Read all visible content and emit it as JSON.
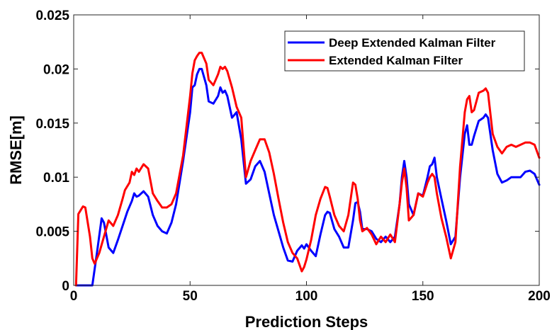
{
  "chart_data": {
    "type": "line",
    "title": "",
    "xlabel": "Prediction Steps",
    "ylabel": "RMSE[m]",
    "xlim": [
      0,
      200
    ],
    "ylim": [
      0,
      0.025
    ],
    "xticks": [
      0,
      50,
      100,
      150,
      200
    ],
    "xtick_labels": [
      "0",
      "50",
      "100",
      "150",
      "200"
    ],
    "yticks": [
      0,
      0.005,
      0.01,
      0.015,
      0.02,
      0.025
    ],
    "ytick_labels": [
      "0",
      "0.005",
      "0.01",
      "0.015",
      "0.02",
      "0.025"
    ],
    "grid": false,
    "legend_position": "top-right",
    "series": [
      {
        "name": "Deep Extended Kalman Filter",
        "color": "#0000ff",
        "x": [
          1,
          4,
          8,
          10,
          12,
          13,
          15,
          17,
          19,
          21,
          23,
          25,
          26,
          27,
          28,
          30,
          32,
          34,
          36,
          38,
          40,
          42,
          44,
          47,
          50,
          51,
          52,
          53,
          54,
          55,
          57,
          58,
          60,
          62,
          63,
          64,
          65,
          66,
          68,
          70,
          72,
          74,
          76,
          78,
          80,
          82,
          84,
          86,
          88,
          90,
          92,
          94,
          96,
          98,
          99,
          100,
          102,
          104,
          106,
          108,
          109,
          110,
          112,
          114,
          116,
          118,
          120,
          121,
          122,
          123,
          124,
          126,
          128,
          130,
          132,
          134,
          136,
          138,
          140,
          141,
          142,
          143,
          144,
          146,
          148,
          150,
          152,
          153,
          154,
          155,
          156,
          158,
          160,
          162,
          164,
          166,
          168,
          169,
          170,
          171,
          172,
          174,
          176,
          177,
          178,
          180,
          182,
          184,
          186,
          188,
          190,
          192,
          194,
          196,
          198,
          200
        ],
        "values": [
          0,
          0,
          0,
          0.003,
          0.0062,
          0.0058,
          0.0035,
          0.003,
          0.0042,
          0.0055,
          0.0068,
          0.0078,
          0.0085,
          0.0082,
          0.0083,
          0.0087,
          0.0082,
          0.0065,
          0.0055,
          0.005,
          0.0048,
          0.0058,
          0.0075,
          0.0115,
          0.016,
          0.0183,
          0.0185,
          0.0195,
          0.02,
          0.02,
          0.0185,
          0.017,
          0.0168,
          0.0175,
          0.0183,
          0.0178,
          0.018,
          0.0175,
          0.0155,
          0.016,
          0.0135,
          0.0094,
          0.0098,
          0.011,
          0.0115,
          0.0105,
          0.0085,
          0.0065,
          0.005,
          0.0035,
          0.0023,
          0.0022,
          0.0032,
          0.0037,
          0.0034,
          0.0038,
          0.0032,
          0.0027,
          0.0047,
          0.0065,
          0.0068,
          0.0067,
          0.0052,
          0.0045,
          0.0035,
          0.0035,
          0.006,
          0.0076,
          0.0077,
          0.0068,
          0.0052,
          0.0052,
          0.005,
          0.0043,
          0.004,
          0.0045,
          0.004,
          0.0045,
          0.0075,
          0.01,
          0.0115,
          0.01,
          0.0075,
          0.0065,
          0.0085,
          0.0083,
          0.01,
          0.011,
          0.0112,
          0.0118,
          0.01,
          0.008,
          0.006,
          0.0038,
          0.0045,
          0.01,
          0.014,
          0.0148,
          0.013,
          0.013,
          0.0138,
          0.0152,
          0.0155,
          0.0158,
          0.0155,
          0.0125,
          0.0103,
          0.0095,
          0.0097,
          0.01,
          0.01,
          0.01,
          0.0105,
          0.0106,
          0.0103,
          0.0093
        ]
      },
      {
        "name": "Extended Kalman Filter",
        "color": "#ff0000",
        "x": [
          1,
          2,
          4,
          5,
          7,
          8,
          9,
          11,
          13,
          15,
          17,
          19,
          21,
          22,
          24,
          25,
          26,
          27,
          28,
          30,
          32,
          34,
          36,
          38,
          40,
          42,
          44,
          47,
          50,
          51,
          52,
          53,
          54,
          55,
          57,
          58,
          60,
          62,
          63,
          64,
          65,
          66,
          68,
          70,
          72,
          74,
          76,
          78,
          80,
          82,
          84,
          86,
          88,
          90,
          92,
          94,
          96,
          98,
          99,
          100,
          102,
          104,
          106,
          108,
          109,
          110,
          112,
          114,
          116,
          118,
          120,
          121,
          122,
          123,
          124,
          126,
          128,
          130,
          132,
          134,
          136,
          138,
          140,
          141,
          142,
          143,
          144,
          146,
          148,
          150,
          152,
          153,
          154,
          155,
          156,
          158,
          160,
          162,
          164,
          166,
          168,
          169,
          170,
          171,
          172,
          174,
          176,
          177,
          178,
          180,
          182,
          184,
          186,
          188,
          190,
          192,
          194,
          196,
          198,
          200
        ],
        "values": [
          0,
          0.0066,
          0.0073,
          0.0072,
          0.0045,
          0.0025,
          0.002,
          0.003,
          0.0045,
          0.006,
          0.0055,
          0.0065,
          0.008,
          0.0088,
          0.0095,
          0.0105,
          0.0102,
          0.0108,
          0.0105,
          0.0112,
          0.0108,
          0.0085,
          0.0078,
          0.0072,
          0.0072,
          0.0075,
          0.0085,
          0.012,
          0.0175,
          0.0196,
          0.0208,
          0.0212,
          0.0215,
          0.0215,
          0.0205,
          0.019,
          0.0185,
          0.0195,
          0.0202,
          0.02,
          0.0202,
          0.0198,
          0.0183,
          0.0165,
          0.0155,
          0.01,
          0.0115,
          0.0125,
          0.0135,
          0.0135,
          0.0123,
          0.0103,
          0.008,
          0.0058,
          0.004,
          0.003,
          0.0025,
          0.0013,
          0.0017,
          0.0024,
          0.0042,
          0.0065,
          0.008,
          0.0091,
          0.009,
          0.0082,
          0.0065,
          0.0055,
          0.005,
          0.0065,
          0.0095,
          0.0093,
          0.008,
          0.006,
          0.005,
          0.0053,
          0.0047,
          0.0038,
          0.0045,
          0.004,
          0.0047,
          0.004,
          0.0075,
          0.0095,
          0.0108,
          0.009,
          0.006,
          0.0065,
          0.0085,
          0.0082,
          0.0095,
          0.01,
          0.0103,
          0.01,
          0.0085,
          0.0062,
          0.0045,
          0.0025,
          0.004,
          0.011,
          0.016,
          0.0172,
          0.0175,
          0.016,
          0.0162,
          0.0178,
          0.018,
          0.0182,
          0.0178,
          0.014,
          0.0128,
          0.0122,
          0.0128,
          0.013,
          0.0128,
          0.013,
          0.0132,
          0.0132,
          0.013,
          0.0118
        ]
      }
    ]
  }
}
